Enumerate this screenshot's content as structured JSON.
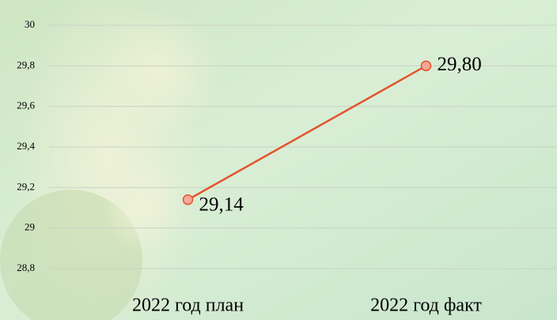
{
  "chart_data": {
    "type": "line",
    "categories": [
      "2022 год план",
      "2022 год факт"
    ],
    "values": [
      29.14,
      29.8
    ],
    "value_labels": [
      "29,14",
      "29,80"
    ],
    "color": "#e4532c",
    "ylim": [
      28.8,
      30
    ],
    "yticks": [
      {
        "value": 28.8,
        "label": "28,8"
      },
      29,
      {
        "value": 29.2,
        "label": "29,2"
      },
      {
        "value": 29.4,
        "label": "29,4"
      },
      {
        "value": 29.6,
        "label": "29,6"
      },
      {
        "value": 29.8,
        "label": "29,8"
      },
      30
    ],
    "grid": true
  }
}
